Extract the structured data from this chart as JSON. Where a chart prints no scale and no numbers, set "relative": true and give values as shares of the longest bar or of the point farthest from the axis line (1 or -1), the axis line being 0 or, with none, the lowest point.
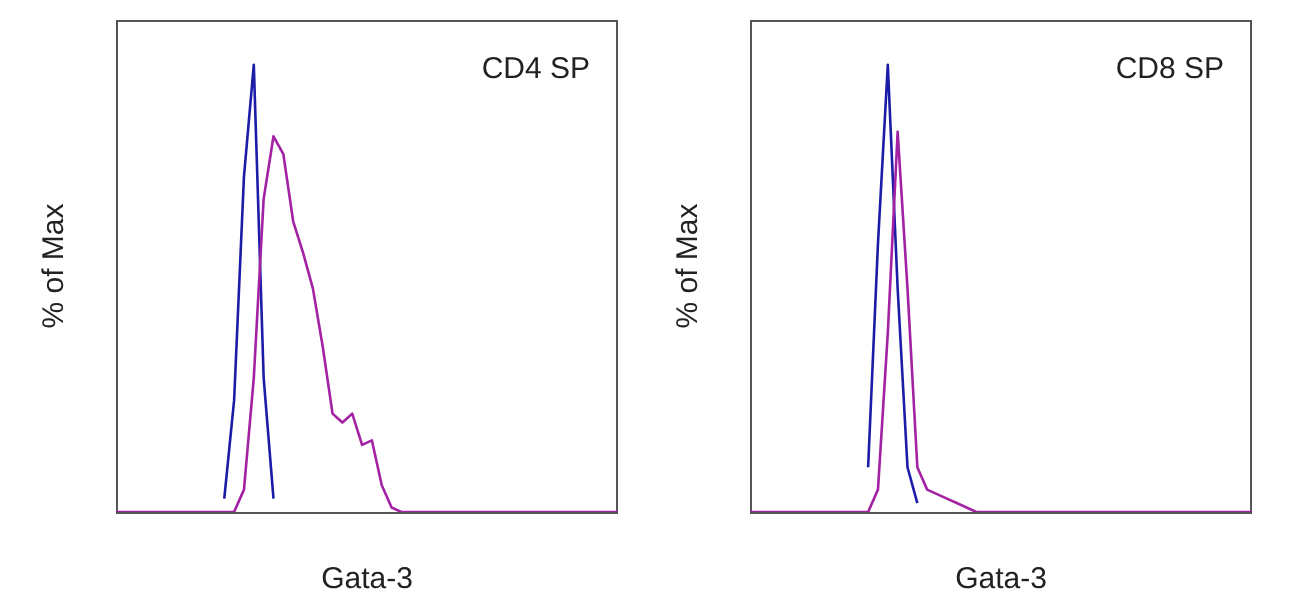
{
  "chart_data": [
    {
      "type": "line",
      "relative": true,
      "ylabel": "% of Max",
      "xlabel": "Gata-3",
      "annotations": [
        "CD4 SP"
      ],
      "marker": "none",
      "grid": false,
      "legend": false,
      "categories": [
        null,
        null,
        null,
        null,
        null,
        null,
        null,
        null,
        null,
        null,
        null,
        null,
        null,
        null,
        null,
        null,
        null,
        null,
        null,
        null,
        null,
        null,
        null,
        null,
        null,
        null,
        null,
        null,
        null,
        null,
        null,
        null,
        null,
        null,
        null,
        null,
        null,
        null,
        null,
        null,
        null,
        null,
        null,
        null,
        null,
        null,
        null,
        null,
        null,
        null,
        null,
        null
      ],
      "series": [
        {
          "color": "#1c1ca8",
          "values": [
            null,
            null,
            null,
            null,
            null,
            null,
            null,
            null,
            null,
            null,
            null,
            0.03,
            0.25,
            0.75,
            1,
            0.3,
            0.03,
            null,
            null,
            null,
            null,
            null,
            null,
            null,
            null,
            null,
            null,
            null,
            null,
            null,
            null,
            null,
            null,
            null,
            null,
            null,
            null,
            null,
            null,
            null,
            null,
            null,
            null,
            null,
            null,
            null,
            null,
            null,
            null,
            null,
            null,
            null
          ]
        },
        {
          "color": "#a321a3",
          "values": [
            0,
            0,
            0,
            0,
            0,
            0,
            0,
            0,
            0,
            0,
            0,
            0,
            0,
            0.05,
            0.3,
            0.7,
            0.84,
            0.8,
            0.65,
            0.58,
            0.5,
            0.37,
            0.22,
            0.2,
            0.22,
            0.15,
            0.16,
            0.06,
            0.01,
            0,
            0,
            0,
            0,
            0,
            0,
            0,
            0,
            0,
            0,
            0,
            0,
            0,
            0,
            0,
            0,
            0,
            0,
            0,
            0,
            0,
            0,
            0
          ]
        }
      ]
    },
    {
      "type": "line",
      "relative": true,
      "ylabel": "% of Max",
      "xlabel": "Gata-3",
      "annotations": [
        "CD8 SP"
      ],
      "marker": "none",
      "grid": false,
      "legend": false,
      "categories": [
        null,
        null,
        null,
        null,
        null,
        null,
        null,
        null,
        null,
        null,
        null,
        null,
        null,
        null,
        null,
        null,
        null,
        null,
        null,
        null,
        null,
        null,
        null,
        null,
        null,
        null,
        null,
        null,
        null,
        null,
        null,
        null,
        null,
        null,
        null,
        null,
        null,
        null,
        null,
        null,
        null,
        null,
        null,
        null,
        null,
        null,
        null,
        null,
        null,
        null,
        null,
        null
      ],
      "series": [
        {
          "color": "#1c1ca8",
          "values": [
            null,
            null,
            null,
            null,
            null,
            null,
            null,
            null,
            null,
            null,
            null,
            null,
            0.1,
            0.6,
            1,
            0.5,
            0.1,
            0.02,
            null,
            null,
            null,
            null,
            null,
            null,
            null,
            null,
            null,
            null,
            null,
            null,
            null,
            null,
            null,
            null,
            null,
            null,
            null,
            null,
            null,
            null,
            null,
            null,
            null,
            null,
            null,
            null,
            null,
            null,
            null,
            null,
            null,
            null
          ]
        },
        {
          "color": "#a321a3",
          "values": [
            0,
            0,
            0,
            0,
            0,
            0,
            0,
            0,
            0,
            0,
            0,
            0,
            0,
            0.05,
            0.4,
            0.85,
            0.5,
            0.1,
            0.05,
            0.04,
            0.03,
            0.02,
            0.01,
            0,
            0,
            0,
            0,
            0,
            0,
            0,
            0,
            0,
            0,
            0,
            0,
            0,
            0,
            0,
            0,
            0,
            0,
            0,
            0,
            0,
            0,
            0,
            0,
            0,
            0,
            0,
            0,
            0
          ]
        }
      ]
    }
  ]
}
